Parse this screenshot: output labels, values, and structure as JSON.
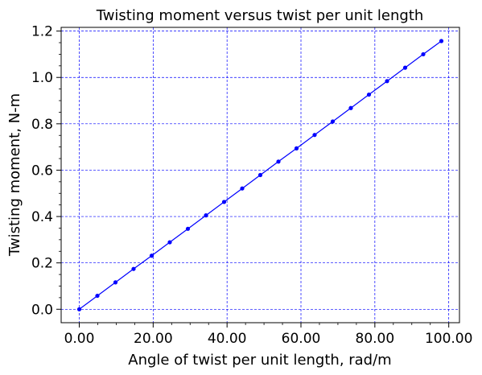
{
  "chart_data": {
    "type": "line",
    "title": "Twisting moment versus twist per unit length",
    "xlabel": "Angle of twist per unit length, rad/m",
    "ylabel": "Twisting moment, N-m",
    "xlim": [
      -4.9,
      102.9
    ],
    "ylim": [
      -0.058,
      1.216
    ],
    "grid": true,
    "grid_color": "#0000ff",
    "line_color": "#0000ff",
    "x_ticks": [
      0,
      20,
      40,
      60,
      80,
      100
    ],
    "x_tick_labels": [
      "0.00",
      "20.00",
      "40.00",
      "60.00",
      "80.00",
      "100.00"
    ],
    "y_ticks": [
      0.0,
      0.2,
      0.4,
      0.6,
      0.8,
      1.0,
      1.2
    ],
    "y_tick_labels": [
      "0.0",
      "0.2",
      "0.4",
      "0.6",
      "0.8",
      "1.0",
      "1.2"
    ],
    "series": [
      {
        "x": [
          0.0,
          4.9,
          9.8,
          14.7,
          19.6,
          24.5,
          29.4,
          34.3,
          39.2,
          44.1,
          49.0,
          53.9,
          58.8,
          63.7,
          68.6,
          73.5,
          78.4,
          83.3,
          88.2,
          93.1,
          98.0
        ],
        "values": [
          0.0,
          0.058,
          0.116,
          0.174,
          0.231,
          0.289,
          0.347,
          0.405,
          0.463,
          0.521,
          0.579,
          0.637,
          0.694,
          0.752,
          0.81,
          0.868,
          0.926,
          0.984,
          1.042,
          1.1,
          1.157
        ]
      }
    ]
  }
}
